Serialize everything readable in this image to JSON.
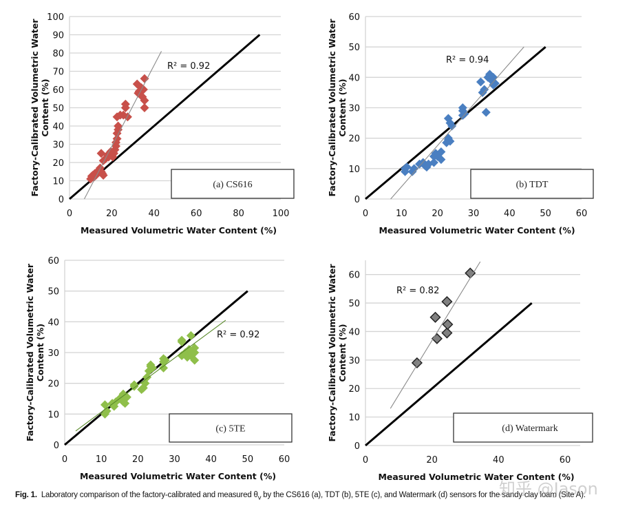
{
  "figure": {
    "caption_label": "Fig. 1.",
    "caption_text": "Laboratory comparison of the factory-calibrated and measured θ",
    "caption_sub": "v",
    "caption_rest": " by the CS616 (a), TDT (b), 5TE (c), and Watermark (d) sensors for the sandy clay loam (Site A).",
    "watermark": "知乎 @Jason"
  },
  "chart_data": [
    {
      "id": "a",
      "type": "scatter",
      "panel_label": "(a) CS616",
      "xlabel": "Measured Volumetric Water Content (%)",
      "ylabel_line1": "Factory-Calibrated Volumetric Water",
      "ylabel_line2": "Content (%)",
      "xlim": [
        0,
        100
      ],
      "ylim": [
        0,
        100
      ],
      "xticks": [
        0,
        20,
        40,
        60,
        80,
        100
      ],
      "yticks": [
        0,
        10,
        20,
        30,
        40,
        50,
        60,
        70,
        80,
        90,
        100
      ],
      "grid": "horizontal",
      "marker_color": "#c8504a",
      "r2_label": "R² = 0.92",
      "one_to_one": [
        [
          0,
          0
        ],
        [
          90,
          90
        ]
      ],
      "trendline": [
        [
          7,
          0
        ],
        [
          43.5,
          81
        ]
      ],
      "points": [
        [
          10,
          11
        ],
        [
          10.5,
          12.5
        ],
        [
          11,
          13
        ],
        [
          11.5,
          12
        ],
        [
          12,
          14
        ],
        [
          12.5,
          13
        ],
        [
          13,
          14.5
        ],
        [
          13.5,
          15
        ],
        [
          14,
          16
        ],
        [
          14.5,
          17
        ],
        [
          15,
          15
        ],
        [
          15.5,
          14
        ],
        [
          16,
          13
        ],
        [
          15,
          25
        ],
        [
          16,
          21
        ],
        [
          17,
          22
        ],
        [
          18,
          24
        ],
        [
          18.5,
          23
        ],
        [
          19,
          25
        ],
        [
          19.5,
          26
        ],
        [
          20,
          24
        ],
        [
          20.5,
          23
        ],
        [
          21,
          25
        ],
        [
          21.5,
          27
        ],
        [
          22,
          29
        ],
        [
          22,
          31
        ],
        [
          22.5,
          33
        ],
        [
          22.5,
          36
        ],
        [
          23,
          38
        ],
        [
          23,
          40
        ],
        [
          22.5,
          45
        ],
        [
          24,
          46
        ],
        [
          25.5,
          46
        ],
        [
          26.5,
          50
        ],
        [
          26.5,
          52
        ],
        [
          27.5,
          45
        ],
        [
          32,
          63
        ],
        [
          32.5,
          58
        ],
        [
          33,
          59
        ],
        [
          34,
          61
        ],
        [
          34.5,
          56
        ],
        [
          35,
          60
        ],
        [
          35.5,
          66
        ],
        [
          35.5,
          54
        ],
        [
          35.5,
          50
        ]
      ]
    },
    {
      "id": "b",
      "type": "scatter",
      "panel_label": "(b) TDT",
      "xlabel": "Measured Volumetric Water Content (%)",
      "ylabel_line1": "Factory-Calibrated Volumetric Water",
      "ylabel_line2": "Content (%)",
      "xlim": [
        0,
        60
      ],
      "ylim": [
        0,
        60
      ],
      "xticks": [
        0,
        10,
        20,
        30,
        40,
        50,
        60
      ],
      "yticks": [
        0,
        10,
        20,
        30,
        40,
        50,
        60
      ],
      "grid": "horizontal",
      "marker_color": "#4a7fc1",
      "r2_label": "R² = 0.94",
      "one_to_one": [
        [
          0,
          0
        ],
        [
          50,
          50
        ]
      ],
      "trendline": [
        [
          7,
          0
        ],
        [
          44,
          50
        ]
      ],
      "points": [
        [
          11,
          10
        ],
        [
          11,
          9
        ],
        [
          11.5,
          10.5
        ],
        [
          13,
          9
        ],
        [
          13.5,
          10
        ],
        [
          15,
          11.5
        ],
        [
          16,
          12
        ],
        [
          16.5,
          11
        ],
        [
          17,
          10.5
        ],
        [
          17.5,
          11.5
        ],
        [
          19,
          12
        ],
        [
          19,
          14
        ],
        [
          19.5,
          15
        ],
        [
          20,
          14
        ],
        [
          21,
          15.5
        ],
        [
          21,
          13
        ],
        [
          22.5,
          18.5
        ],
        [
          23,
          19.5
        ],
        [
          23,
          20
        ],
        [
          23.5,
          19
        ],
        [
          23,
          26.5
        ],
        [
          23.5,
          25
        ],
        [
          24,
          24
        ],
        [
          27,
          30
        ],
        [
          27,
          29
        ],
        [
          27.5,
          28
        ],
        [
          27,
          27.5
        ],
        [
          32,
          38.5
        ],
        [
          32.5,
          35
        ],
        [
          33,
          36
        ],
        [
          34,
          40
        ],
        [
          34.5,
          41
        ],
        [
          35,
          39
        ],
        [
          35.5,
          40
        ],
        [
          36,
          38
        ],
        [
          35.5,
          37.5
        ],
        [
          33.5,
          28.5
        ]
      ]
    },
    {
      "id": "c",
      "type": "scatter",
      "panel_label": "(c) 5TE",
      "xlabel": "Measured Volumetric Water Content (%)",
      "ylabel_line1": "Factory-Calibrated Volumetric Water",
      "ylabel_line2": "Content (%)",
      "xlim": [
        0,
        60
      ],
      "ylim": [
        0,
        60
      ],
      "xticks": [
        0,
        10,
        20,
        30,
        40,
        50,
        60
      ],
      "yticks": [
        0,
        10,
        20,
        30,
        40,
        50,
        60
      ],
      "grid": "horizontal",
      "marker_color": "#8fbf4a",
      "r2_label": "R² = 0.92",
      "one_to_one": [
        [
          0,
          0
        ],
        [
          50,
          50
        ]
      ],
      "trendline": [
        [
          3,
          4.5
        ],
        [
          44,
          40.5
        ]
      ],
      "points": [
        [
          11,
          13
        ],
        [
          11,
          10
        ],
        [
          11.5,
          11
        ],
        [
          13,
          13.5
        ],
        [
          13.5,
          12.5
        ],
        [
          14,
          14
        ],
        [
          15,
          15
        ],
        [
          15.5,
          15.5
        ],
        [
          16,
          16.5
        ],
        [
          16,
          14
        ],
        [
          16.5,
          13.5
        ],
        [
          17,
          15.5
        ],
        [
          19,
          19.5
        ],
        [
          19,
          19
        ],
        [
          21,
          18
        ],
        [
          21.5,
          18.5
        ],
        [
          22,
          20
        ],
        [
          22.5,
          22
        ],
        [
          23,
          24
        ],
        [
          23.5,
          25.5
        ],
        [
          23.5,
          26
        ],
        [
          24,
          25
        ],
        [
          27,
          28
        ],
        [
          27,
          27
        ],
        [
          27,
          25
        ],
        [
          27.5,
          27.5
        ],
        [
          32,
          33.5
        ],
        [
          32,
          29
        ],
        [
          33,
          30
        ],
        [
          33.5,
          28.5
        ],
        [
          34,
          31
        ],
        [
          34.5,
          35.5
        ],
        [
          34.5,
          29
        ],
        [
          35.5,
          31.5
        ],
        [
          35.5,
          30
        ],
        [
          35.5,
          27.5
        ],
        [
          32,
          34
        ]
      ]
    },
    {
      "id": "d",
      "type": "scatter",
      "panel_label": "(d) Watermark",
      "xlabel": "Measured Volumetric Water Content (%)",
      "ylabel_line1": "Factory-Calibrated Volumetric Water",
      "ylabel_line2": "Content (%)",
      "xlim": [
        0,
        60
      ],
      "ylim": [
        0,
        65
      ],
      "xticks": [
        0,
        20,
        40,
        60
      ],
      "yticks": [
        0,
        10,
        20,
        30,
        40,
        50,
        60
      ],
      "grid": "horizontal",
      "marker_color": "#808080",
      "r2_label": "R² = 0.82",
      "one_to_one": [
        [
          0,
          0
        ],
        [
          50,
          50
        ]
      ],
      "trendline": [
        [
          7.5,
          13
        ],
        [
          34.5,
          64.5
        ]
      ],
      "points": [
        [
          15.5,
          29
        ],
        [
          21,
          45
        ],
        [
          21.5,
          37.5
        ],
        [
          24.5,
          50.5
        ],
        [
          24.5,
          39.5
        ],
        [
          24.7,
          42.5
        ],
        [
          31.5,
          60.5
        ]
      ]
    }
  ]
}
